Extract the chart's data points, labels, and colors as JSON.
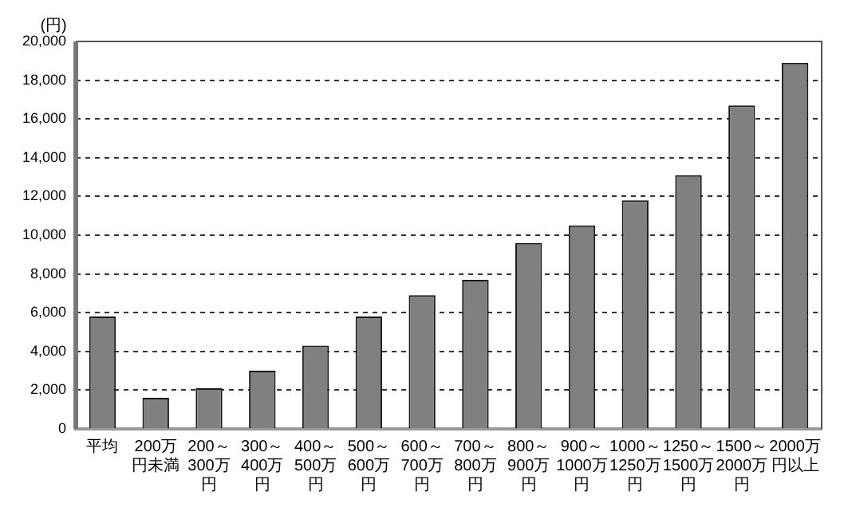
{
  "chart_data": {
    "type": "bar",
    "ylabel": "(円)",
    "categories": [
      "平均",
      "200万円未満",
      "200～300万円",
      "300～400万円",
      "400～500万円",
      "500～600万円",
      "600～700万円",
      "700～800万円",
      "800～900万円",
      "900～1000万円",
      "1000～1250万円",
      "1250～1500万円",
      "1500～2000万円",
      "2000万円以上"
    ],
    "values": [
      5800,
      1600,
      2100,
      3000,
      4300,
      5800,
      6900,
      7700,
      9600,
      10500,
      11800,
      13100,
      16700,
      18900
    ],
    "color": "#808080",
    "ylim": [
      0,
      20000
    ],
    "yticks": [
      0,
      {
        "value": 2000,
        "label": "2,000"
      },
      {
        "value": 4000,
        "label": "4,000"
      },
      {
        "value": 6000,
        "label": "6,000"
      },
      {
        "value": 8000,
        "label": "8,000"
      },
      {
        "value": 10000,
        "label": "10,000"
      },
      {
        "value": 12000,
        "label": "12,000"
      },
      {
        "value": 14000,
        "label": "14,000"
      },
      {
        "value": 16000,
        "label": "16,000"
      },
      {
        "value": 18000,
        "label": "18,000"
      },
      {
        "value": 20000,
        "label": "20,000"
      }
    ],
    "grid": "y",
    "legend": false
  }
}
